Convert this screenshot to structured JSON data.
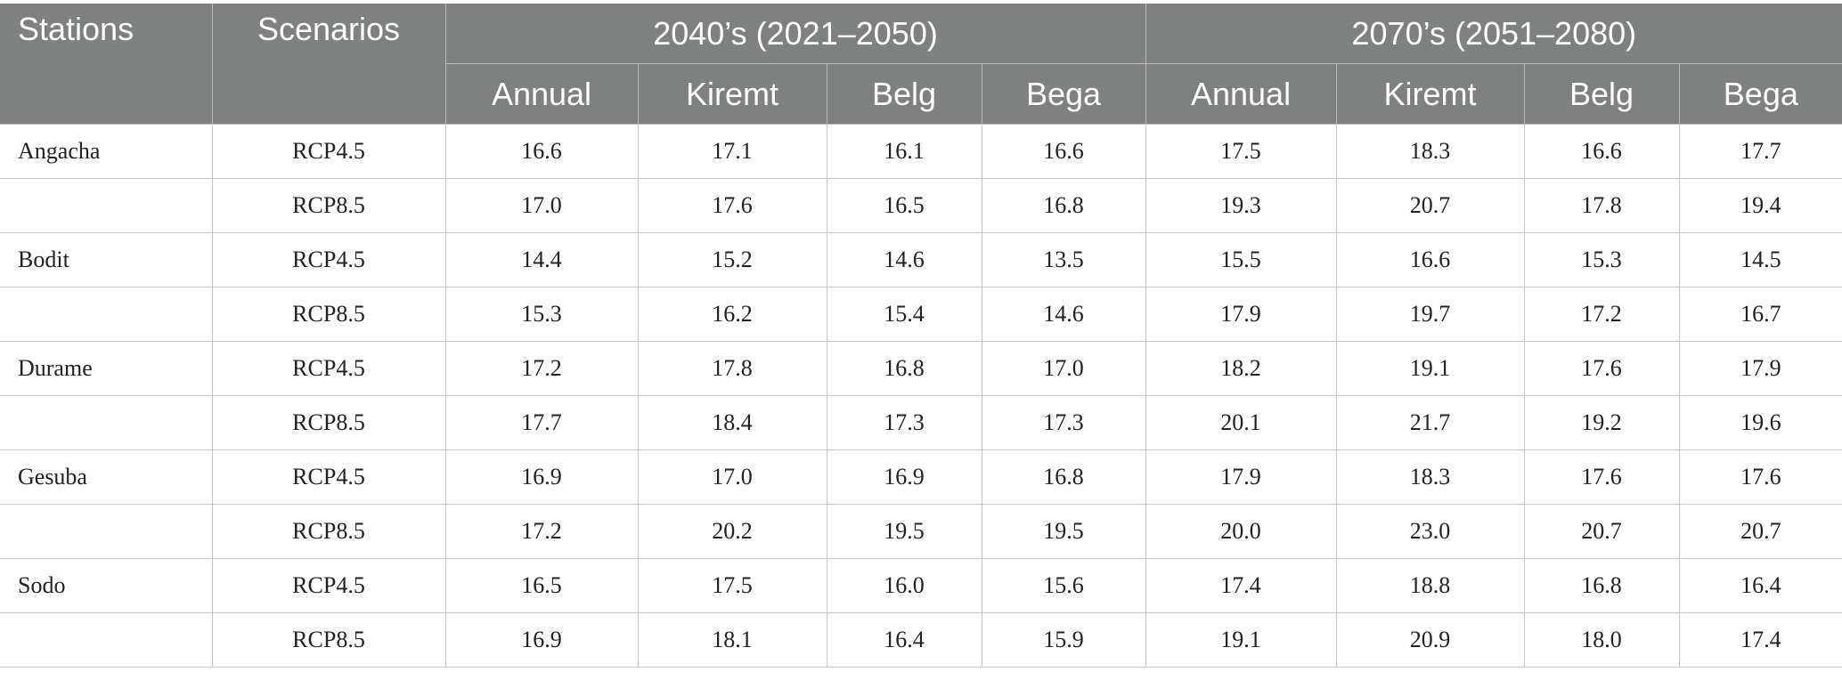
{
  "table": {
    "headers": {
      "stations": "Stations",
      "scenarios": "Scenarios",
      "period1": "2040’s (2021–2050)",
      "period2": "2070’s (2051–2080)",
      "seasons": [
        "Annual",
        "Kiremt",
        "Belg",
        "Bega",
        "Annual",
        "Kiremt",
        "Belg",
        "Bega"
      ]
    },
    "rows": [
      {
        "station": "Angacha",
        "scenario": "RCP4.5",
        "values": [
          "16.6",
          "17.1",
          "16.1",
          "16.6",
          "17.5",
          "18.3",
          "16.6",
          "17.7"
        ]
      },
      {
        "station": "",
        "scenario": "RCP8.5",
        "values": [
          "17.0",
          "17.6",
          "16.5",
          "16.8",
          "19.3",
          "20.7",
          "17.8",
          "19.4"
        ]
      },
      {
        "station": "Bodit",
        "scenario": "RCP4.5",
        "values": [
          "14.4",
          "15.2",
          "14.6",
          "13.5",
          "15.5",
          "16.6",
          "15.3",
          "14.5"
        ]
      },
      {
        "station": "",
        "scenario": "RCP8.5",
        "values": [
          "15.3",
          "16.2",
          "15.4",
          "14.6",
          "17.9",
          "19.7",
          "17.2",
          "16.7"
        ]
      },
      {
        "station": "Durame",
        "scenario": "RCP4.5",
        "values": [
          "17.2",
          "17.8",
          "16.8",
          "17.0",
          "18.2",
          "19.1",
          "17.6",
          "17.9"
        ]
      },
      {
        "station": "",
        "scenario": "RCP8.5",
        "values": [
          "17.7",
          "18.4",
          "17.3",
          "17.3",
          "20.1",
          "21.7",
          "19.2",
          "19.6"
        ]
      },
      {
        "station": "Gesuba",
        "scenario": "RCP4.5",
        "values": [
          "16.9",
          "17.0",
          "16.9",
          "16.8",
          "17.9",
          "18.3",
          "17.6",
          "17.6"
        ]
      },
      {
        "station": "",
        "scenario": "RCP8.5",
        "values": [
          "17.2",
          "20.2",
          "19.5",
          "19.5",
          "20.0",
          "23.0",
          "20.7",
          "20.7"
        ]
      },
      {
        "station": "Sodo",
        "scenario": "RCP4.5",
        "values": [
          "16.5",
          "17.5",
          "16.0",
          "15.6",
          "17.4",
          "18.8",
          "16.8",
          "16.4"
        ]
      },
      {
        "station": "",
        "scenario": "RCP8.5",
        "values": [
          "16.9",
          "18.1",
          "16.4",
          "15.9",
          "19.1",
          "20.9",
          "18.0",
          "17.4"
        ]
      }
    ]
  }
}
